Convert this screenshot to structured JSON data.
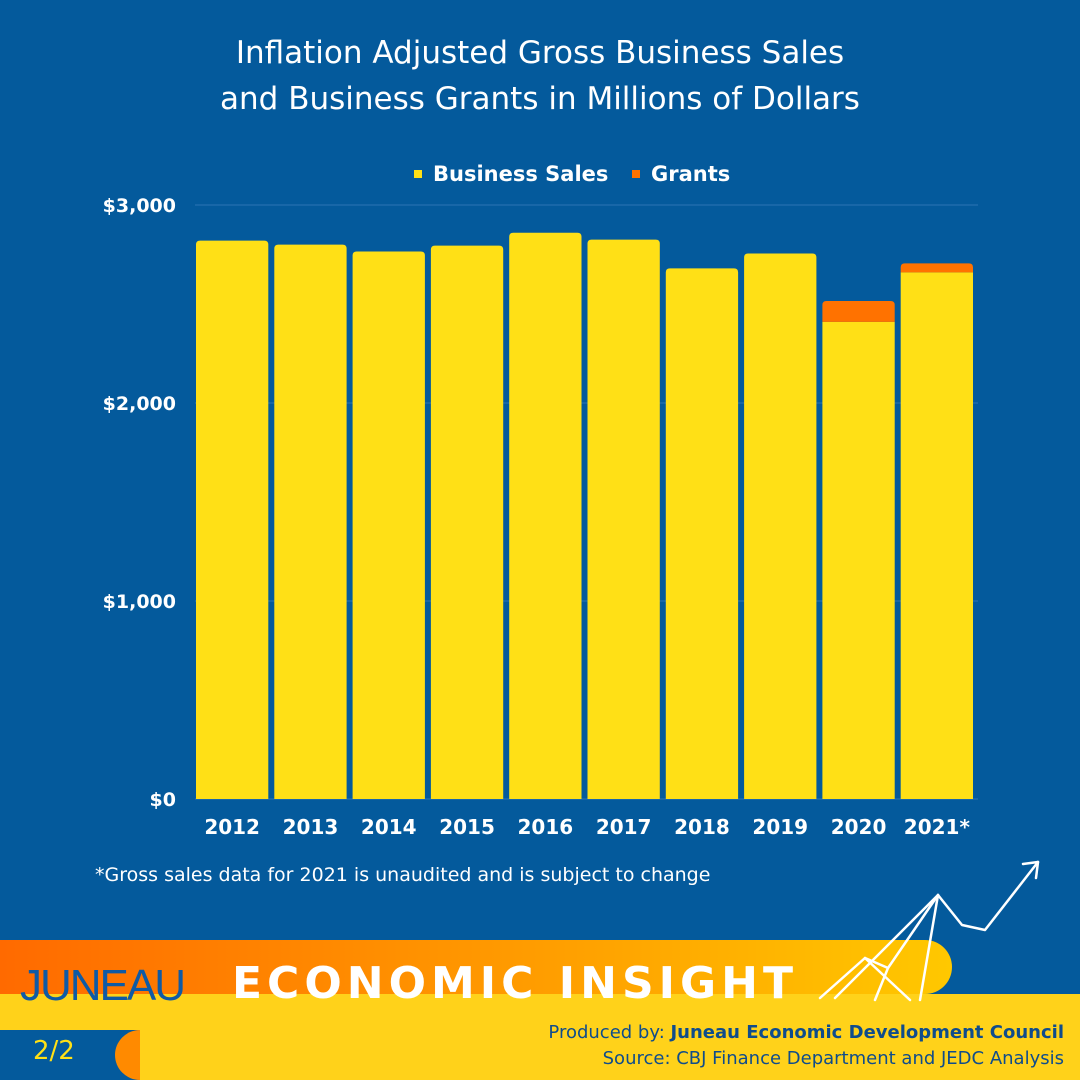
{
  "title_line1": "Inflation Adjusted Gross Business Sales",
  "title_line2": "and Business Grants in Millions of Dollars",
  "footnote": "*Gross sales data for 2021 is unaudited and is subject to change",
  "branding": {
    "juneau": "JUNEAU",
    "insight": "ECONOMIC INSIGHT",
    "page": "2/2",
    "produced_prefix": "Produced by: ",
    "produced_org": "Juneau Economic Development Council",
    "source": "Source: CBJ Finance Department and JEDC Analysis"
  },
  "colors": {
    "background": "#045A9C",
    "sales": "#FFE016",
    "grants": "#FF7200",
    "band_left": "#FF6A00",
    "band_right": "#FFC800"
  },
  "chart_data": {
    "type": "bar",
    "stacked": true,
    "categories": [
      "2012",
      "2013",
      "2014",
      "2015",
      "2016",
      "2017",
      "2018",
      "2019",
      "2020",
      "2021*"
    ],
    "series": [
      {
        "name": "Business Sales",
        "color": "#FFE016",
        "values": [
          2820,
          2800,
          2765,
          2795,
          2860,
          2825,
          2680,
          2755,
          2410,
          2660
        ]
      },
      {
        "name": "Grants",
        "color": "#FF7200",
        "values": [
          0,
          0,
          0,
          0,
          0,
          0,
          0,
          0,
          105,
          45
        ]
      }
    ],
    "ylim": [
      0,
      3000
    ],
    "yticks": [
      0,
      1000,
      2000,
      3000
    ],
    "ytick_labels": [
      "$0",
      "$1,000",
      "$2,000",
      "$3,000"
    ],
    "legend_position": "top",
    "grid": true
  }
}
